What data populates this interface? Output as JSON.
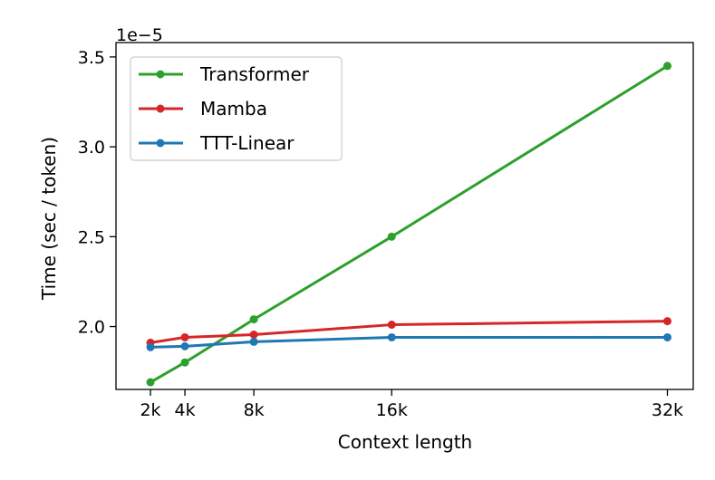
{
  "chart_data": {
    "type": "line",
    "title": "",
    "xlabel": "Context length",
    "ylabel": "Time (sec / token)",
    "y_offset_label": "1e−5",
    "x": [
      2000,
      4000,
      8000,
      16000,
      32000
    ],
    "x_tick_labels": [
      "2k",
      "4k",
      "8k",
      "16k",
      "32k"
    ],
    "y_ticks": [
      2.0,
      2.5,
      3.0,
      3.5
    ],
    "y_tick_labels": [
      "2.0",
      "2.5",
      "3.0",
      "3.5"
    ],
    "y_multiplier": 1e-05,
    "xlim": [
      0,
      33500
    ],
    "ylim": [
      1.65,
      3.58
    ],
    "grid": false,
    "legend_position": "upper-left",
    "series": [
      {
        "name": "Transformer",
        "color": "#2ca02c",
        "values": [
          1.69,
          1.8,
          2.04,
          2.5,
          3.45
        ]
      },
      {
        "name": "Mamba",
        "color": "#d62728",
        "values": [
          1.91,
          1.94,
          1.955,
          2.01,
          2.03
        ]
      },
      {
        "name": "TTT-Linear",
        "color": "#1f77b4",
        "values": [
          1.885,
          1.89,
          1.915,
          1.94,
          1.94
        ]
      }
    ]
  }
}
